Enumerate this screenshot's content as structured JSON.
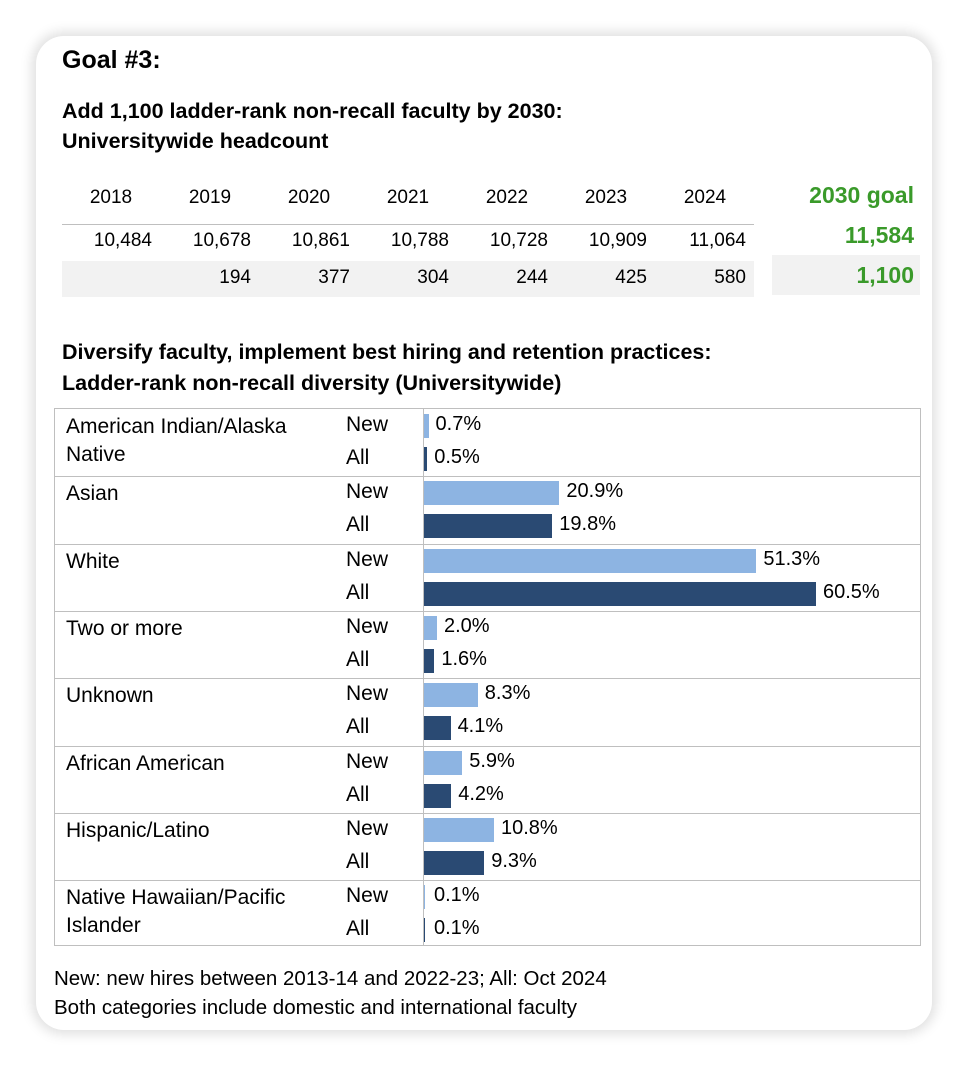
{
  "goal_title": "Goal #3:",
  "headcount": {
    "title_line1": "Add 1,100 ladder-rank non-recall faculty by 2030:",
    "title_line2": "Universitywide headcount",
    "years": [
      "2018",
      "2019",
      "2020",
      "2021",
      "2022",
      "2023",
      "2024"
    ],
    "counts": [
      "10,484",
      "10,678",
      "10,861",
      "10,788",
      "10,728",
      "10,909",
      "11,064"
    ],
    "increases": [
      "",
      "194",
      "377",
      "304",
      "244",
      "425",
      "580"
    ],
    "goal_label": "2030 goal",
    "goal_count": "11,584",
    "goal_increase": "1,100",
    "accent_color": "#3a9a2a"
  },
  "diversity": {
    "title_line1": "Diversify faculty, implement best hiring and retention practices:",
    "title_line2": "Ladder-rank non-recall diversity (Universitywide)"
  },
  "footnote_line1": "New: new hires between 2013-14 and 2022-23; All: Oct 2024",
  "footnote_line2": "Both categories include domestic and international faculty",
  "chart_data": {
    "type": "bar",
    "orientation": "horizontal",
    "categories": [
      [
        "American Indian/Alaska",
        "Native"
      ],
      [
        "Asian"
      ],
      [
        "White"
      ],
      [
        "Two or more"
      ],
      [
        "Unknown"
      ],
      [
        "African American"
      ],
      [
        "Hispanic/Latino"
      ],
      [
        "Native Hawaiian/Pacific",
        "Islander"
      ]
    ],
    "series": [
      {
        "name": "New",
        "color": "#8db4e2",
        "values": [
          0.7,
          20.9,
          51.3,
          2.0,
          8.3,
          5.9,
          10.8,
          0.1
        ],
        "labels": [
          "0.7%",
          "20.9%",
          "51.3%",
          "2.0%",
          "8.3%",
          "5.9%",
          "10.8%",
          "0.1%"
        ]
      },
      {
        "name": "All",
        "color": "#2a4a73",
        "values": [
          0.5,
          19.8,
          60.5,
          1.6,
          4.1,
          4.2,
          9.3,
          0.1
        ],
        "labels": [
          "0.5%",
          "19.8%",
          "60.5%",
          "1.6%",
          "4.1%",
          "4.2%",
          "9.3%",
          "0.1%"
        ]
      }
    ],
    "xlim": [
      0,
      100
    ],
    "grid": false,
    "legend": "none"
  }
}
